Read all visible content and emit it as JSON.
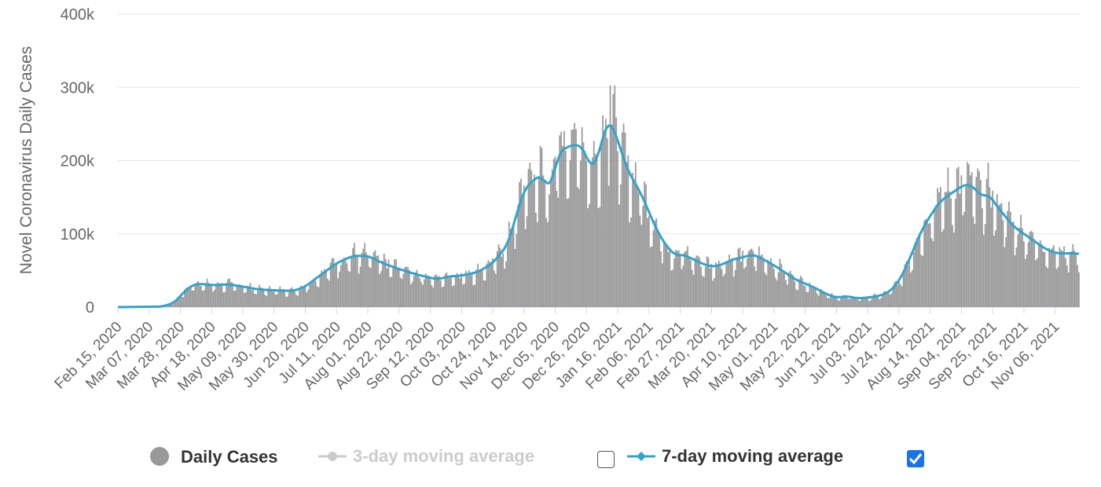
{
  "chart_data": {
    "type": "bar",
    "title": "",
    "ylabel": "Novel Coronavirus Daily Cases",
    "xlabel": "",
    "ylim": [
      0,
      400000
    ],
    "yticks": [
      {
        "value": 0,
        "label": "0"
      },
      {
        "value": 100000,
        "label": "100k"
      },
      {
        "value": 200000,
        "label": "200k"
      },
      {
        "value": 300000,
        "label": "300k"
      },
      {
        "value": 400000,
        "label": "400k"
      }
    ],
    "date_range": {
      "start": "2020-02-15",
      "end": "2021-11-21",
      "days": 646
    },
    "xticks": [
      {
        "day": 0,
        "label": "Feb 15, 2020"
      },
      {
        "day": 21,
        "label": "Mar 07, 2020"
      },
      {
        "day": 42,
        "label": "Mar 28, 2020"
      },
      {
        "day": 63,
        "label": "Apr 18, 2020"
      },
      {
        "day": 84,
        "label": "May 09, 2020"
      },
      {
        "day": 105,
        "label": "May 30, 2020"
      },
      {
        "day": 126,
        "label": "Jun 20, 2020"
      },
      {
        "day": 147,
        "label": "Jul 11, 2020"
      },
      {
        "day": 168,
        "label": "Aug 01, 2020"
      },
      {
        "day": 189,
        "label": "Aug 22, 2020"
      },
      {
        "day": 210,
        "label": "Sep 12, 2020"
      },
      {
        "day": 231,
        "label": "Oct 03, 2020"
      },
      {
        "day": 252,
        "label": "Oct 24, 2020"
      },
      {
        "day": 273,
        "label": "Nov 14, 2020"
      },
      {
        "day": 294,
        "label": "Dec 05, 2020"
      },
      {
        "day": 315,
        "label": "Dec 26, 2020"
      },
      {
        "day": 336,
        "label": "Jan 16, 2021"
      },
      {
        "day": 357,
        "label": "Feb 06, 2021"
      },
      {
        "day": 378,
        "label": "Feb 27, 2021"
      },
      {
        "day": 399,
        "label": "Mar 20, 2021"
      },
      {
        "day": 420,
        "label": "Apr 10, 2021"
      },
      {
        "day": 441,
        "label": "May 01, 2021"
      },
      {
        "day": 462,
        "label": "May 22, 2021"
      },
      {
        "day": 483,
        "label": "Jun 12, 2021"
      },
      {
        "day": 504,
        "label": "Jul 03, 2021"
      },
      {
        "day": 525,
        "label": "Jul 24, 2021"
      },
      {
        "day": 546,
        "label": "Aug 14, 2021"
      },
      {
        "day": 567,
        "label": "Sep 04, 2021"
      },
      {
        "day": 588,
        "label": "Sep 25, 2021"
      },
      {
        "day": 609,
        "label": "Oct 16, 2021"
      },
      {
        "day": 630,
        "label": "Nov 06, 2021"
      }
    ],
    "trend_points": [
      [
        0,
        0
      ],
      [
        30,
        800
      ],
      [
        38,
        6000
      ],
      [
        44,
        20000
      ],
      [
        50,
        30000
      ],
      [
        55,
        32000
      ],
      [
        63,
        30000
      ],
      [
        75,
        31000
      ],
      [
        84,
        28000
      ],
      [
        95,
        24000
      ],
      [
        105,
        23000
      ],
      [
        118,
        22000
      ],
      [
        126,
        28000
      ],
      [
        137,
        45000
      ],
      [
        147,
        60000
      ],
      [
        158,
        70000
      ],
      [
        168,
        70000
      ],
      [
        178,
        60000
      ],
      [
        189,
        52000
      ],
      [
        200,
        45000
      ],
      [
        210,
        40000
      ],
      [
        215,
        38000
      ],
      [
        223,
        42000
      ],
      [
        231,
        43000
      ],
      [
        242,
        48000
      ],
      [
        252,
        60000
      ],
      [
        262,
        85000
      ],
      [
        267,
        120000
      ],
      [
        273,
        160000
      ],
      [
        280,
        175000
      ],
      [
        285,
        180000
      ],
      [
        288,
        165000
      ],
      [
        292,
        170000
      ],
      [
        296,
        210000
      ],
      [
        303,
        220000
      ],
      [
        310,
        222000
      ],
      [
        313,
        215000
      ],
      [
        318,
        190000
      ],
      [
        322,
        200000
      ],
      [
        327,
        240000
      ],
      [
        330,
        255000
      ],
      [
        333,
        245000
      ],
      [
        338,
        215000
      ],
      [
        343,
        185000
      ],
      [
        349,
        165000
      ],
      [
        355,
        140000
      ],
      [
        361,
        110000
      ],
      [
        368,
        85000
      ],
      [
        375,
        70000
      ],
      [
        380,
        72000
      ],
      [
        386,
        66000
      ],
      [
        392,
        60000
      ],
      [
        399,
        55000
      ],
      [
        406,
        58000
      ],
      [
        413,
        65000
      ],
      [
        420,
        68000
      ],
      [
        427,
        72000
      ],
      [
        434,
        65000
      ],
      [
        441,
        57000
      ],
      [
        448,
        48000
      ],
      [
        455,
        38000
      ],
      [
        462,
        32000
      ],
      [
        469,
        26000
      ],
      [
        476,
        18000
      ],
      [
        483,
        13000
      ],
      [
        490,
        15000
      ],
      [
        497,
        12000
      ],
      [
        504,
        13000
      ],
      [
        511,
        15000
      ],
      [
        518,
        20000
      ],
      [
        525,
        35000
      ],
      [
        532,
        65000
      ],
      [
        539,
        100000
      ],
      [
        546,
        125000
      ],
      [
        553,
        145000
      ],
      [
        560,
        155000
      ],
      [
        567,
        165000
      ],
      [
        572,
        168000
      ],
      [
        577,
        160000
      ],
      [
        581,
        150000
      ],
      [
        585,
        155000
      ],
      [
        590,
        140000
      ],
      [
        596,
        125000
      ],
      [
        602,
        110000
      ],
      [
        609,
        100000
      ],
      [
        616,
        90000
      ],
      [
        623,
        80000
      ],
      [
        630,
        74000
      ],
      [
        637,
        73000
      ],
      [
        642,
        74000
      ],
      [
        646,
        72000
      ]
    ],
    "peaks": [
      {
        "day": 331,
        "value": 303000
      }
    ],
    "series": [
      {
        "name": "Daily Cases",
        "kind": "bar",
        "color": "#999999",
        "visible": true
      },
      {
        "name": "3-day moving average",
        "kind": "line",
        "color": "#cccccc",
        "visible": false
      },
      {
        "name": "7-day moving average",
        "kind": "line",
        "color": "#33a3cc",
        "visible": true
      }
    ]
  },
  "legend": {
    "daily_cases": "Daily Cases",
    "three_day": "3-day moving average",
    "seven_day": "7-day moving average"
  }
}
